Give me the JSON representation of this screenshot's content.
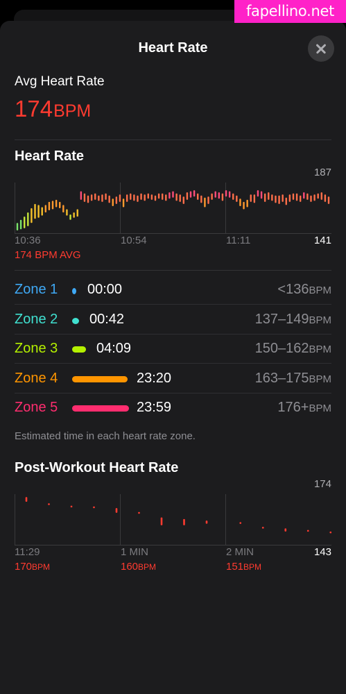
{
  "watermark": "fapellino.net",
  "header": {
    "title": "Heart Rate"
  },
  "summary": {
    "label": "Avg Heart Rate",
    "value": "174",
    "unit": "BPM"
  },
  "hr_chart": {
    "title": "Heart Rate",
    "max_label": "187",
    "min_label": "141",
    "x_ticks": [
      "10:36",
      "10:54",
      "11:11"
    ],
    "avg_note": "174 BPM AVG"
  },
  "zones": [
    {
      "name": "Zone 1",
      "time": "00:00",
      "range": "<136",
      "unit": "BPM",
      "color": "#3fa9f5"
    },
    {
      "name": "Zone 2",
      "time": "00:42",
      "range": "137–149",
      "unit": "BPM",
      "color": "#40e0d0"
    },
    {
      "name": "Zone 3",
      "time": "04:09",
      "range": "150–162",
      "unit": "BPM",
      "color": "#b4f000"
    },
    {
      "name": "Zone 4",
      "time": "23:20",
      "range": "163–175",
      "unit": "BPM",
      "color": "#ff9500"
    },
    {
      "name": "Zone 5",
      "time": "23:59",
      "range": "176+",
      "unit": "BPM",
      "color": "#ff2d6f"
    }
  ],
  "zones_footnote": "Estimated time in each heart rate zone.",
  "post_chart": {
    "title": "Post-Workout Heart Rate",
    "max_label": "174",
    "min_label": "143",
    "x_ticks": [
      "11:29",
      "1 MIN",
      "2 MIN"
    ],
    "readings": [
      {
        "value": "170",
        "unit": "BPM"
      },
      {
        "value": "160",
        "unit": "BPM"
      },
      {
        "value": "151",
        "unit": "BPM"
      }
    ]
  },
  "chart_data": [
    {
      "type": "bar",
      "title": "Heart Rate",
      "x": [
        "10:36",
        "10:54",
        "11:11"
      ],
      "ylim": [
        141,
        187
      ],
      "series": [
        {
          "values": [
            [
              143,
              150
            ],
            [
              144,
              153
            ],
            [
              145,
              156
            ],
            [
              147,
              160
            ],
            [
              150,
              164
            ],
            [
              154,
              168
            ],
            [
              155,
              167
            ],
            [
              157,
              165
            ],
            [
              160,
              167
            ],
            [
              162,
              170
            ],
            [
              163,
              171
            ],
            [
              165,
              172
            ],
            [
              164,
              170
            ],
            [
              160,
              167
            ],
            [
              157,
              163
            ],
            [
              153,
              158
            ],
            [
              155,
              160
            ],
            [
              156,
              163
            ],
            [
              172,
              180
            ],
            [
              170,
              178
            ],
            [
              169,
              176
            ],
            [
              171,
              177
            ],
            [
              172,
              178
            ],
            [
              171,
              176
            ],
            [
              170,
              177
            ],
            [
              172,
              178
            ],
            [
              169,
              176
            ],
            [
              166,
              173
            ],
            [
              168,
              175
            ],
            [
              170,
              177
            ],
            [
              165,
              173
            ],
            [
              170,
              177
            ],
            [
              172,
              178
            ],
            [
              171,
              177
            ],
            [
              170,
              176
            ],
            [
              172,
              178
            ],
            [
              171,
              177
            ],
            [
              173,
              178
            ],
            [
              172,
              177
            ],
            [
              171,
              176
            ],
            [
              173,
              178
            ],
            [
              172,
              178
            ],
            [
              171,
              177
            ],
            [
              173,
              179
            ],
            [
              174,
              180
            ],
            [
              171,
              178
            ],
            [
              170,
              177
            ],
            [
              168,
              175
            ],
            [
              172,
              179
            ],
            [
              174,
              180
            ],
            [
              175,
              181
            ],
            [
              172,
              178
            ],
            [
              169,
              176
            ],
            [
              165,
              174
            ],
            [
              168,
              175
            ],
            [
              172,
              178
            ],
            [
              174,
              180
            ],
            [
              173,
              179
            ],
            [
              171,
              178
            ],
            [
              175,
              181
            ],
            [
              174,
              180
            ],
            [
              172,
              178
            ],
            [
              170,
              176
            ],
            [
              166,
              173
            ],
            [
              163,
              170
            ],
            [
              165,
              172
            ],
            [
              170,
              177
            ],
            [
              169,
              177
            ],
            [
              175,
              181
            ],
            [
              173,
              180
            ],
            [
              170,
              178
            ],
            [
              172,
              179
            ],
            [
              171,
              177
            ],
            [
              169,
              176
            ],
            [
              168,
              176
            ],
            [
              170,
              177
            ],
            [
              167,
              174
            ],
            [
              170,
              177
            ],
            [
              172,
              178
            ],
            [
              171,
              178
            ],
            [
              170,
              176
            ],
            [
              173,
              179
            ],
            [
              172,
              178
            ],
            [
              170,
              176
            ],
            [
              171,
              177
            ],
            [
              173,
              178
            ],
            [
              172,
              179
            ],
            [
              170,
              177
            ],
            [
              168,
              175
            ]
          ]
        }
      ]
    },
    {
      "type": "scatter",
      "title": "Post-Workout Heart Rate",
      "x": [
        "11:29",
        "1 MIN",
        "2 MIN"
      ],
      "ylim": [
        143,
        174
      ],
      "series": [
        {
          "values": [
            [
              0.0,
              170,
              173
            ],
            [
              0.1,
              168,
              169
            ],
            [
              0.2,
              167,
              167.5
            ],
            [
              0.3,
              166,
              167
            ],
            [
              0.4,
              163,
              166
            ],
            [
              0.5,
              163,
              163.5
            ],
            [
              0.6,
              155,
              160
            ],
            [
              0.7,
              155,
              159
            ],
            [
              0.8,
              156,
              158
            ],
            [
              0.95,
              156,
              157
            ],
            [
              1.05,
              153,
              154
            ],
            [
              1.15,
              151,
              153
            ],
            [
              1.25,
              151,
              152
            ],
            [
              1.35,
              150,
              151
            ]
          ]
        }
      ]
    }
  ]
}
